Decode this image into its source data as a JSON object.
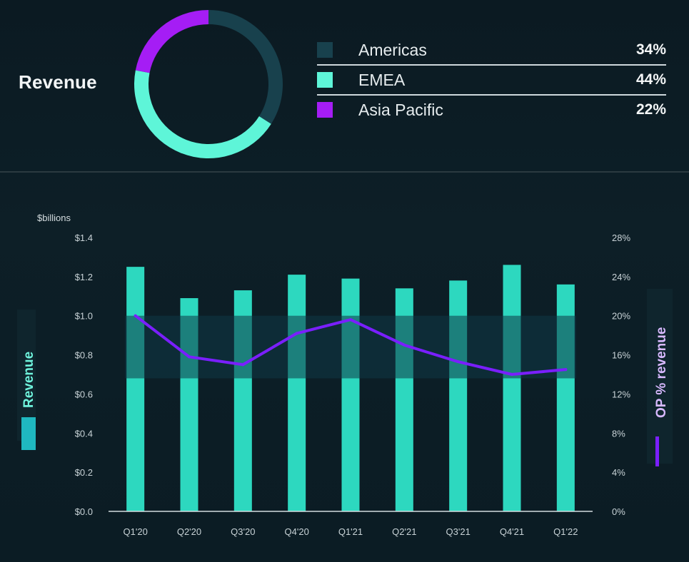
{
  "revenue_section": {
    "title": "Revenue",
    "regions": [
      {
        "name": "Americas",
        "pct_label": "34%",
        "value": 34,
        "color": "#18414d"
      },
      {
        "name": "EMEA",
        "pct_label": "44%",
        "value": 44,
        "color": "#5ef5d8"
      },
      {
        "name": "Asia Pacific",
        "pct_label": "22%",
        "value": 22,
        "color": "#a51df5"
      }
    ]
  },
  "chart_data": {
    "type": "bar",
    "unit_label": "$billions",
    "categories": [
      "Q1'20",
      "Q2'20",
      "Q3'20",
      "Q4'20",
      "Q1'21",
      "Q2'21",
      "Q3'21",
      "Q4'21",
      "Q1'22"
    ],
    "ylim": [
      0,
      1.4
    ],
    "y_ticks": [
      "$0.0",
      "$0.2",
      "$0.4",
      "$0.6",
      "$0.8",
      "$1.0",
      "$1.2",
      "$1.4"
    ],
    "y2lim": [
      0,
      28
    ],
    "y2_ticks": [
      "0%",
      "4%",
      "8%",
      "12%",
      "16%",
      "20%",
      "24%",
      "28%"
    ],
    "ylabel": "Revenue",
    "y2label": "OP % revenue",
    "series": [
      {
        "name": "Revenue",
        "type": "bar",
        "axis": "left",
        "color": "#2dd8bf",
        "values": [
          1.25,
          1.09,
          1.13,
          1.21,
          1.19,
          1.14,
          1.18,
          1.26,
          1.16
        ]
      },
      {
        "name": "OP % revenue",
        "type": "line",
        "axis": "right",
        "color": "#7a1fff",
        "values": [
          20.0,
          15.8,
          15.0,
          18.2,
          19.6,
          17.0,
          15.3,
          14.0,
          14.5
        ]
      }
    ],
    "grid": false,
    "legend": "sides"
  }
}
